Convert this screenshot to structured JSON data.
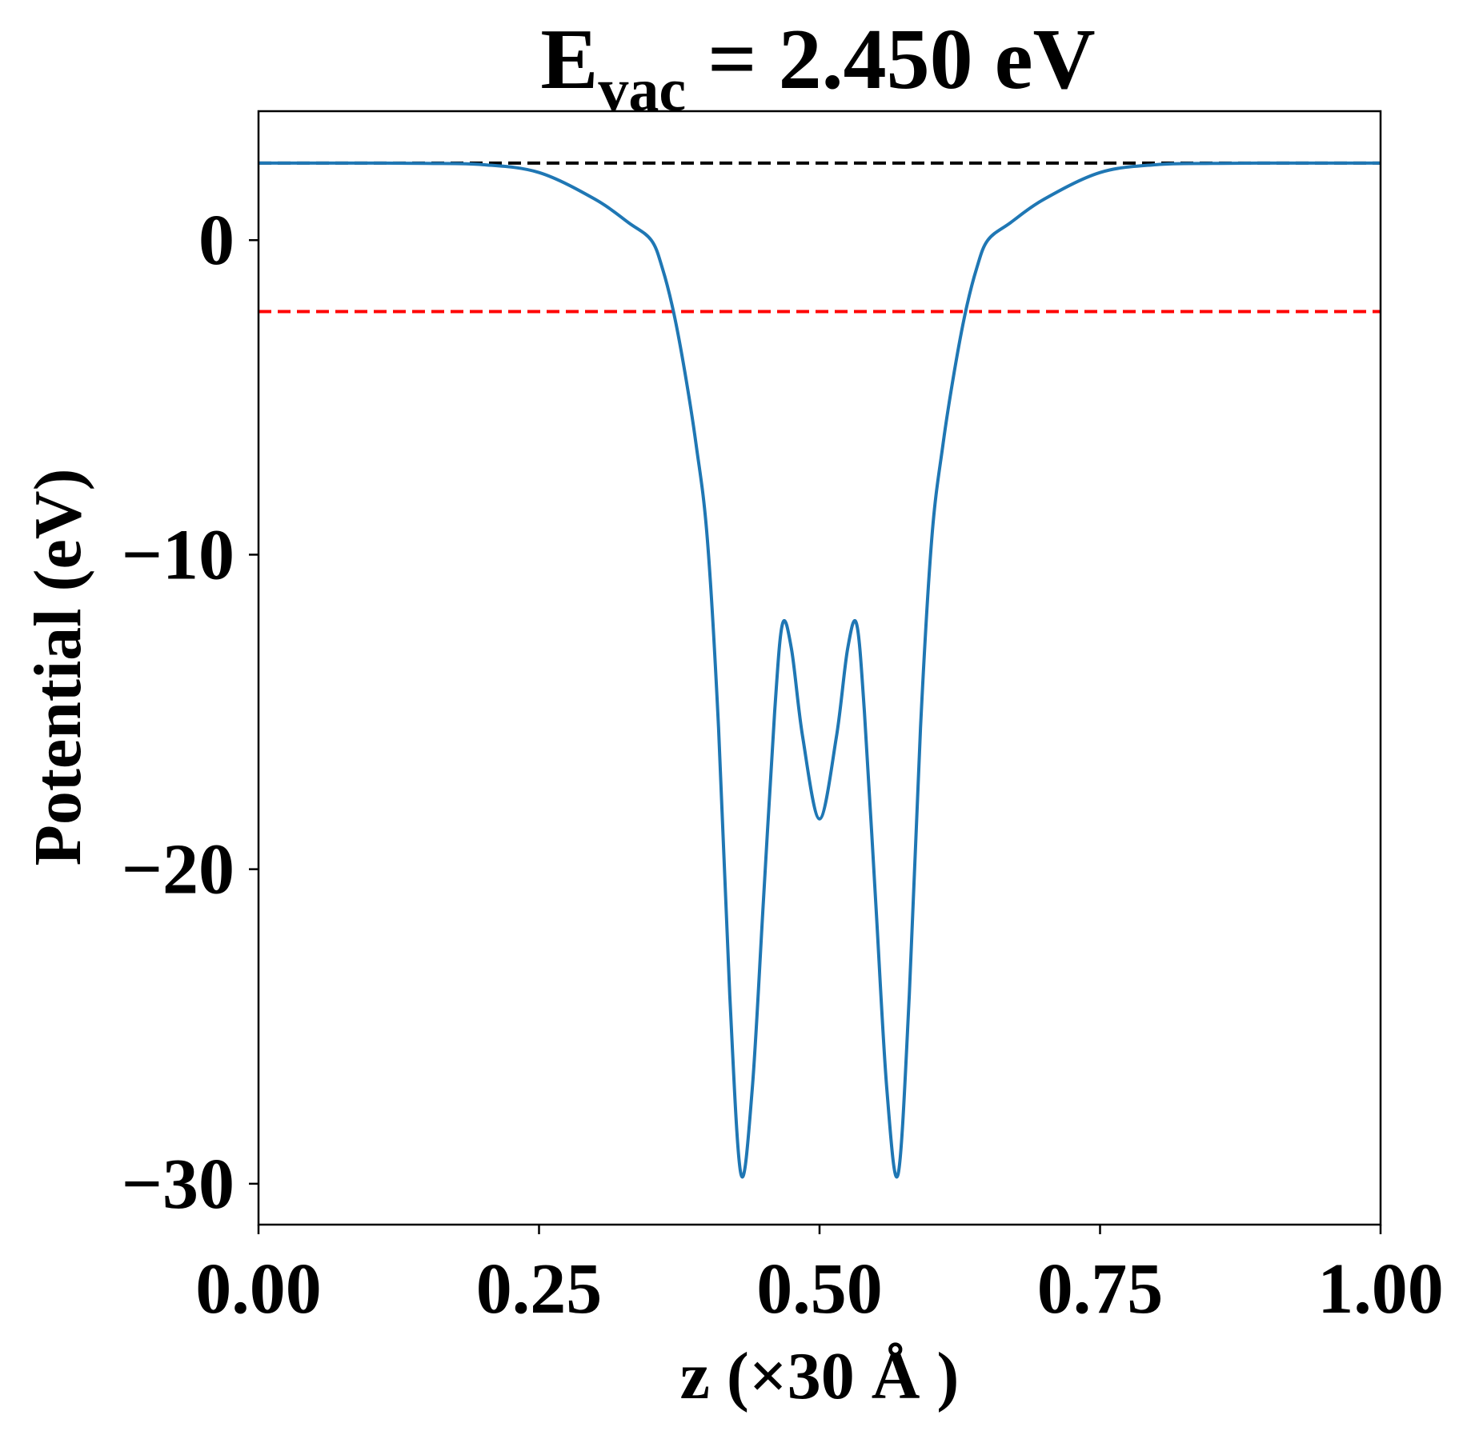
{
  "chart_data": {
    "type": "line",
    "title": {
      "main": "E",
      "sub": "vac",
      "rest": " = 2.450 eV"
    },
    "x_label": "z (×30 Å )",
    "y_label": "Potential (eV)",
    "x": [
      0,
      0.05,
      0.1,
      0.15,
      0.2,
      0.25,
      0.3,
      0.33,
      0.35,
      0.36,
      0.37,
      0.38,
      0.39,
      0.4,
      0.41,
      0.42,
      0.43,
      0.44,
      0.45,
      0.46,
      0.467,
      0.475,
      0.485,
      0.5,
      0.515,
      0.525,
      0.533,
      0.54,
      0.55,
      0.56,
      0.57,
      0.58,
      0.59,
      0.6,
      0.61,
      0.62,
      0.63,
      0.64,
      0.65,
      0.67,
      0.7,
      0.75,
      0.8,
      0.85,
      0.9,
      0.95,
      1
    ],
    "series": [
      {
        "color": "#1f77b4",
        "values": [
          2.45,
          2.45,
          2.45,
          2.44,
          2.4,
          2.15,
          1.3,
          0.55,
          0,
          -0.9,
          -2.3,
          -4.2,
          -6.5,
          -9.5,
          -15.5,
          -24,
          -29.7,
          -27,
          -21,
          -15,
          -12.2,
          -13,
          -15.8,
          -18.4,
          -15.8,
          -13,
          -12.2,
          -15,
          -21,
          -27,
          -29.7,
          -24,
          -15.5,
          -9.5,
          -6.5,
          -4.2,
          -2.3,
          -0.9,
          0,
          0.55,
          1.3,
          2.15,
          2.4,
          2.44,
          2.45,
          2.45,
          2.45
        ]
      }
    ],
    "hlines": [
      {
        "value": 2.45,
        "color": "#000000"
      },
      {
        "value": -2.27,
        "color": "#ff0000"
      }
    ],
    "xlim": [
      0,
      1
    ],
    "ylim": [
      -31.3,
      4.1
    ],
    "xticks": [
      {
        "value": 0,
        "label": "0.00"
      },
      {
        "value": 0.25,
        "label": "0.25"
      },
      {
        "value": 0.5,
        "label": "0.50"
      },
      {
        "value": 0.75,
        "label": "0.75"
      },
      {
        "value": 1,
        "label": "1.00"
      }
    ],
    "yticks": [
      0,
      {
        "value": -10,
        "label": "−10"
      },
      {
        "value": -20,
        "label": "−20"
      },
      {
        "value": -30,
        "label": "−30"
      }
    ]
  }
}
